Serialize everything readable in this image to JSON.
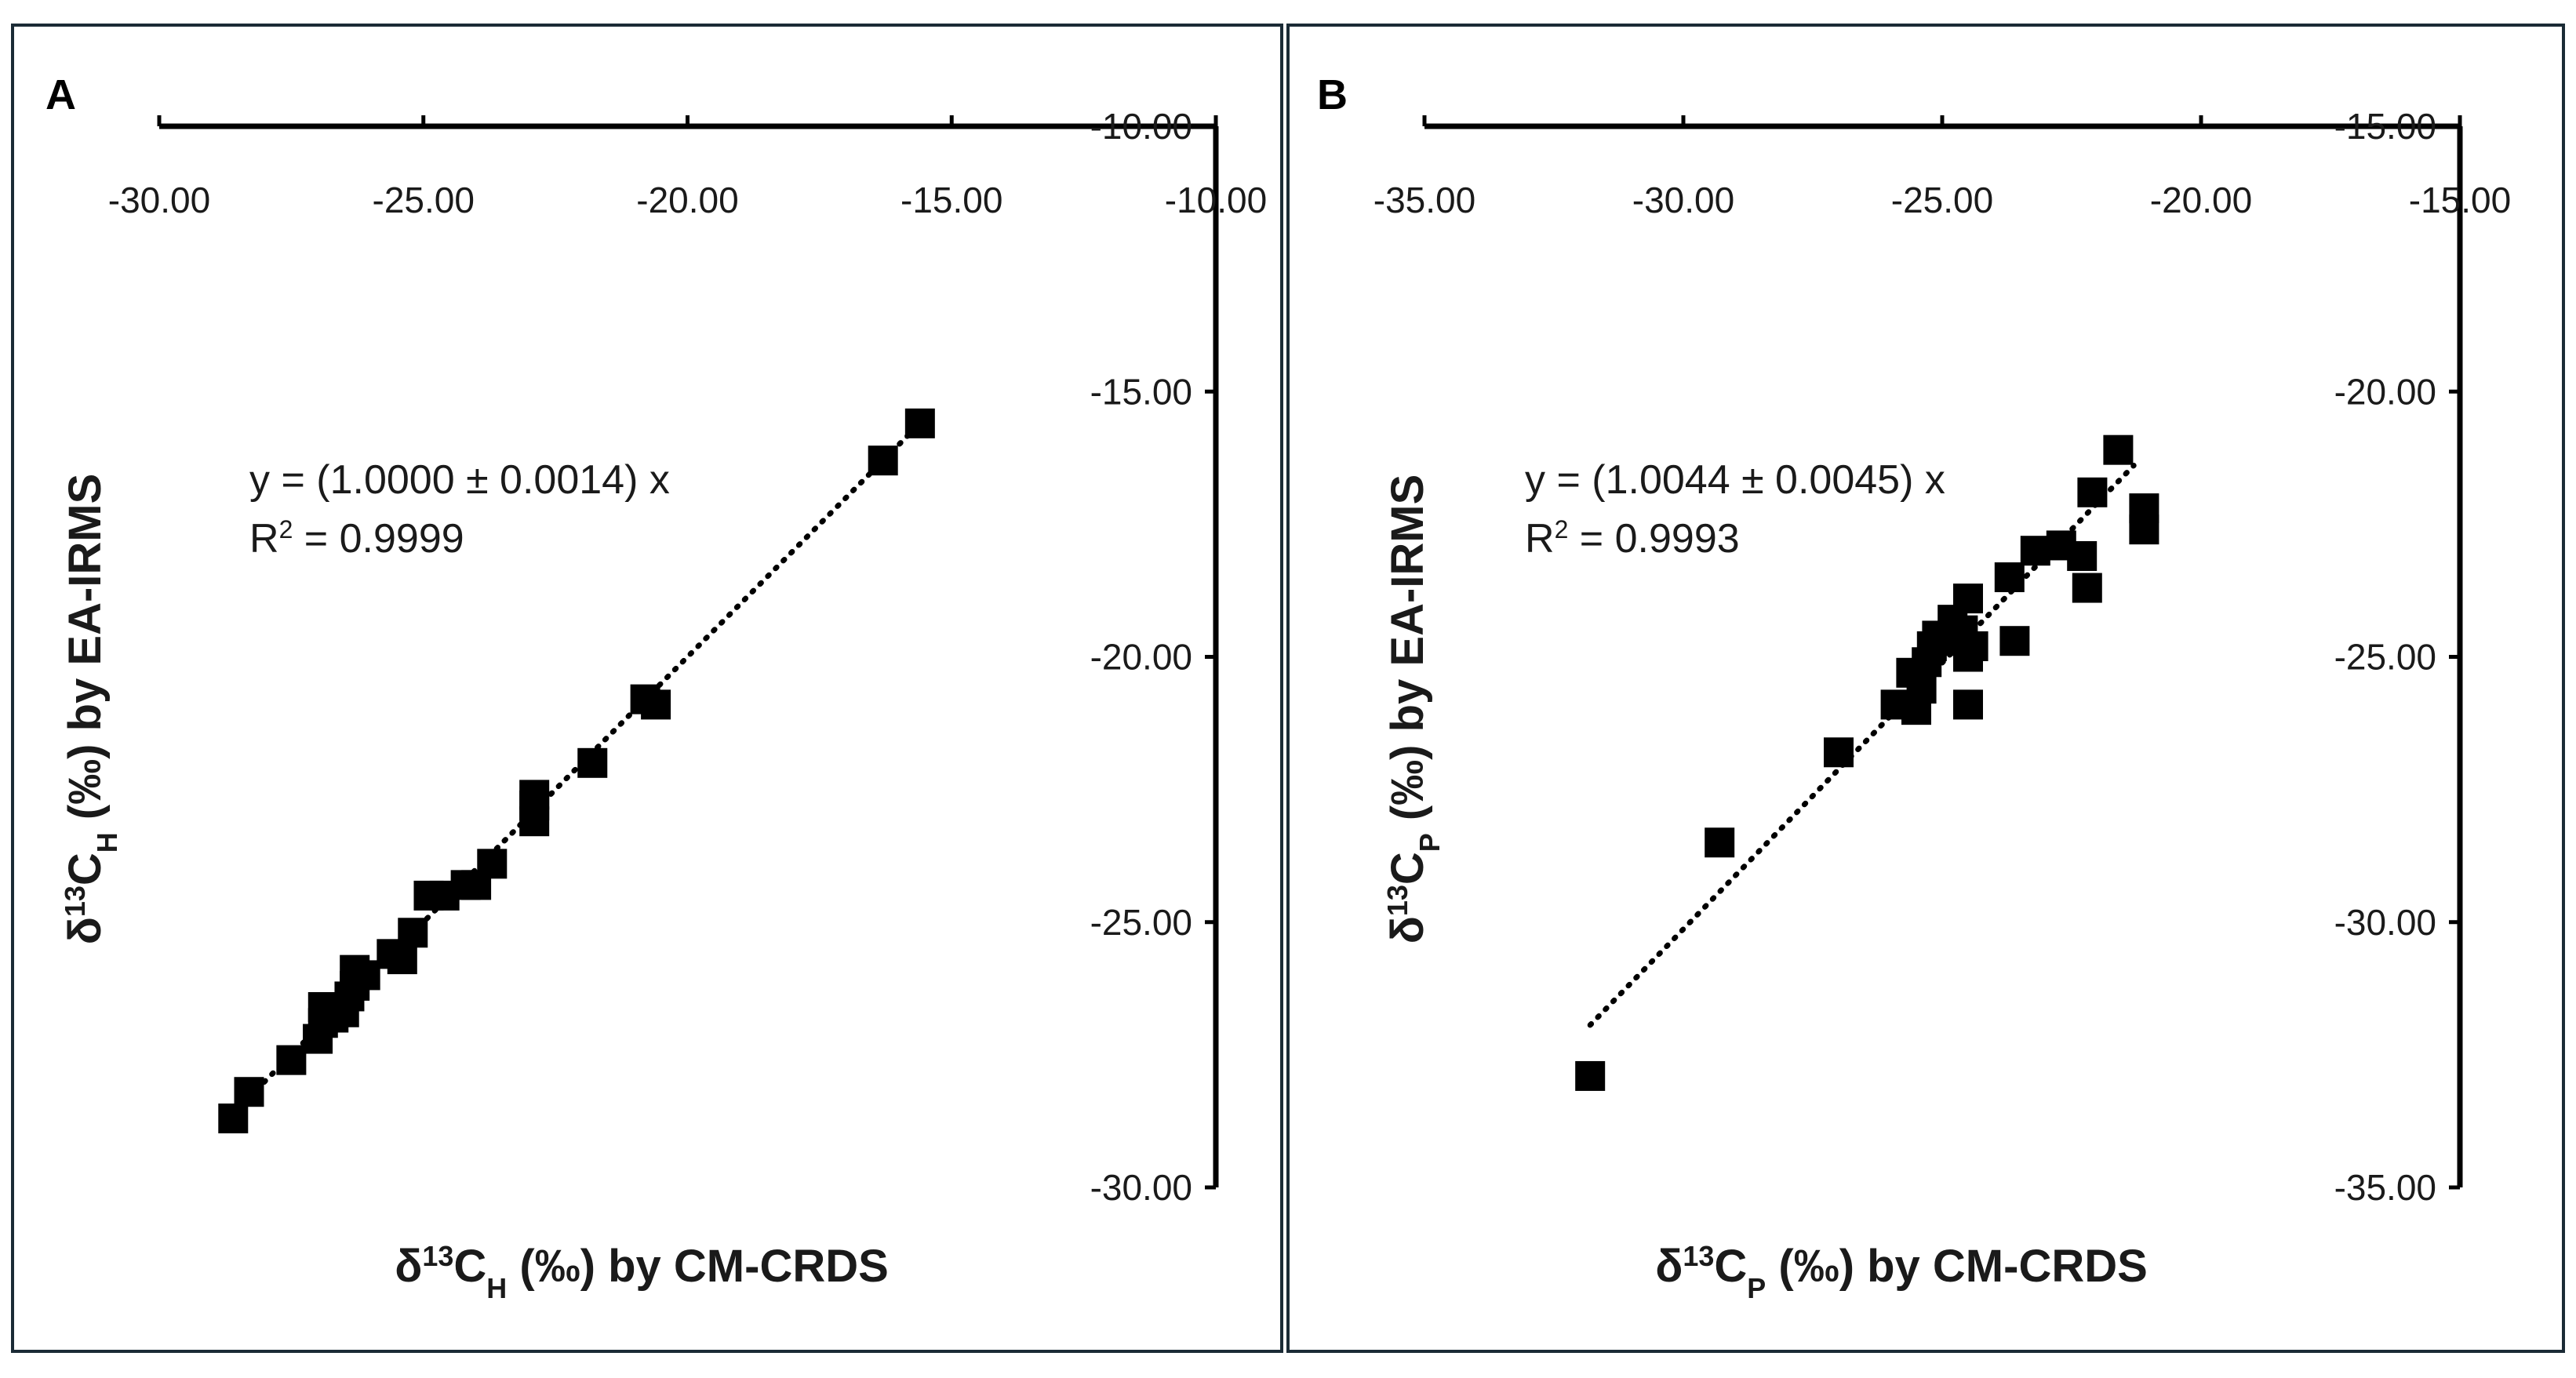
{
  "chart_data": [
    {
      "type": "scatter",
      "panel_label": "A",
      "xlabel": {
        "prefix": "δ",
        "sup": "13",
        "main": "C",
        "sub": "H",
        "rest": " (‰) by CM-CRDS"
      },
      "ylabel": {
        "prefix": "δ",
        "sup": "13",
        "main": "C",
        "sub": "H",
        "rest": " (‰) by EA-IRMS"
      },
      "xlim": [
        -30,
        -10
      ],
      "ylim": [
        -30,
        -10
      ],
      "xticks": [
        "-30.00",
        "-25.00",
        "-20.00",
        "-15.00",
        "-10.00"
      ],
      "yticks": [
        "-30.00",
        "-25.00",
        "-20.00",
        "-15.00",
        "-10.00"
      ],
      "equation": "y = (1.0000 ± 0.0014) x",
      "r2_label": {
        "main": "R",
        "sup": "2",
        "rest": " = 0.9999"
      },
      "trendline": {
        "slope": 1.0,
        "x_range": [
          -28.6,
          -15.6
        ]
      },
      "points": [
        [
          -28.6,
          -28.7
        ],
        [
          -28.3,
          -28.2
        ],
        [
          -27.5,
          -27.6
        ],
        [
          -27.0,
          -27.2
        ],
        [
          -26.9,
          -26.9
        ],
        [
          -26.9,
          -26.6
        ],
        [
          -26.7,
          -26.8
        ],
        [
          -26.5,
          -26.7
        ],
        [
          -26.4,
          -26.4
        ],
        [
          -26.3,
          -26.2
        ],
        [
          -26.3,
          -25.9
        ],
        [
          -26.1,
          -26.0
        ],
        [
          -25.6,
          -25.6
        ],
        [
          -25.4,
          -25.7
        ],
        [
          -25.2,
          -25.2
        ],
        [
          -24.9,
          -24.5
        ],
        [
          -24.6,
          -24.5
        ],
        [
          -24.2,
          -24.3
        ],
        [
          -24.0,
          -24.3
        ],
        [
          -23.7,
          -23.9
        ],
        [
          -22.9,
          -23.1
        ],
        [
          -22.9,
          -22.8
        ],
        [
          -22.9,
          -22.6
        ],
        [
          -21.8,
          -22.0
        ],
        [
          -20.8,
          -20.8
        ],
        [
          -20.6,
          -20.9
        ],
        [
          -16.3,
          -16.3
        ],
        [
          -15.6,
          -15.6
        ]
      ]
    },
    {
      "type": "scatter",
      "panel_label": "B",
      "xlabel": {
        "prefix": "δ",
        "sup": "13",
        "main": "C",
        "sub": "P",
        "rest": " (‰) by CM-CRDS"
      },
      "ylabel": {
        "prefix": "δ",
        "sup": "13",
        "main": "C",
        "sub": "P",
        "rest": " (‰) by EA-IRMS"
      },
      "xlim": [
        -35,
        -15
      ],
      "ylim": [
        -35,
        -15
      ],
      "xticks": [
        "-35.00",
        "-30.00",
        "-25.00",
        "-20.00",
        "-15.00"
      ],
      "yticks": [
        "-35.00",
        "-30.00",
        "-25.00",
        "-20.00",
        "-15.00"
      ],
      "equation": "y = (1.0044 ± 0.0045) x",
      "r2_label": {
        "main": "R",
        "sup": "2",
        "rest": " = 0.9993"
      },
      "trendline": {
        "slope": 1.0044,
        "x_range": [
          -31.8,
          -21.3
        ]
      },
      "points": [
        [
          -31.8,
          -32.9
        ],
        [
          -29.3,
          -28.5
        ],
        [
          -27.0,
          -26.8
        ],
        [
          -25.9,
          -25.9
        ],
        [
          -25.6,
          -25.3
        ],
        [
          -25.5,
          -26.0
        ],
        [
          -25.4,
          -25.6
        ],
        [
          -25.3,
          -25.1
        ],
        [
          -25.2,
          -24.8
        ],
        [
          -25.1,
          -24.6
        ],
        [
          -24.9,
          -24.7
        ],
        [
          -24.8,
          -24.3
        ],
        [
          -24.6,
          -24.5
        ],
        [
          -24.5,
          -25.9
        ],
        [
          -24.5,
          -25.0
        ],
        [
          -24.4,
          -24.8
        ],
        [
          -24.5,
          -23.9
        ],
        [
          -23.7,
          -23.5
        ],
        [
          -23.6,
          -24.7
        ],
        [
          -23.2,
          -23.0
        ],
        [
          -22.7,
          -22.9
        ],
        [
          -22.3,
          -23.1
        ],
        [
          -22.2,
          -23.7
        ],
        [
          -22.1,
          -21.9
        ],
        [
          -21.6,
          -21.1
        ],
        [
          -21.1,
          -22.2
        ],
        [
          -21.1,
          -22.6
        ]
      ]
    }
  ]
}
